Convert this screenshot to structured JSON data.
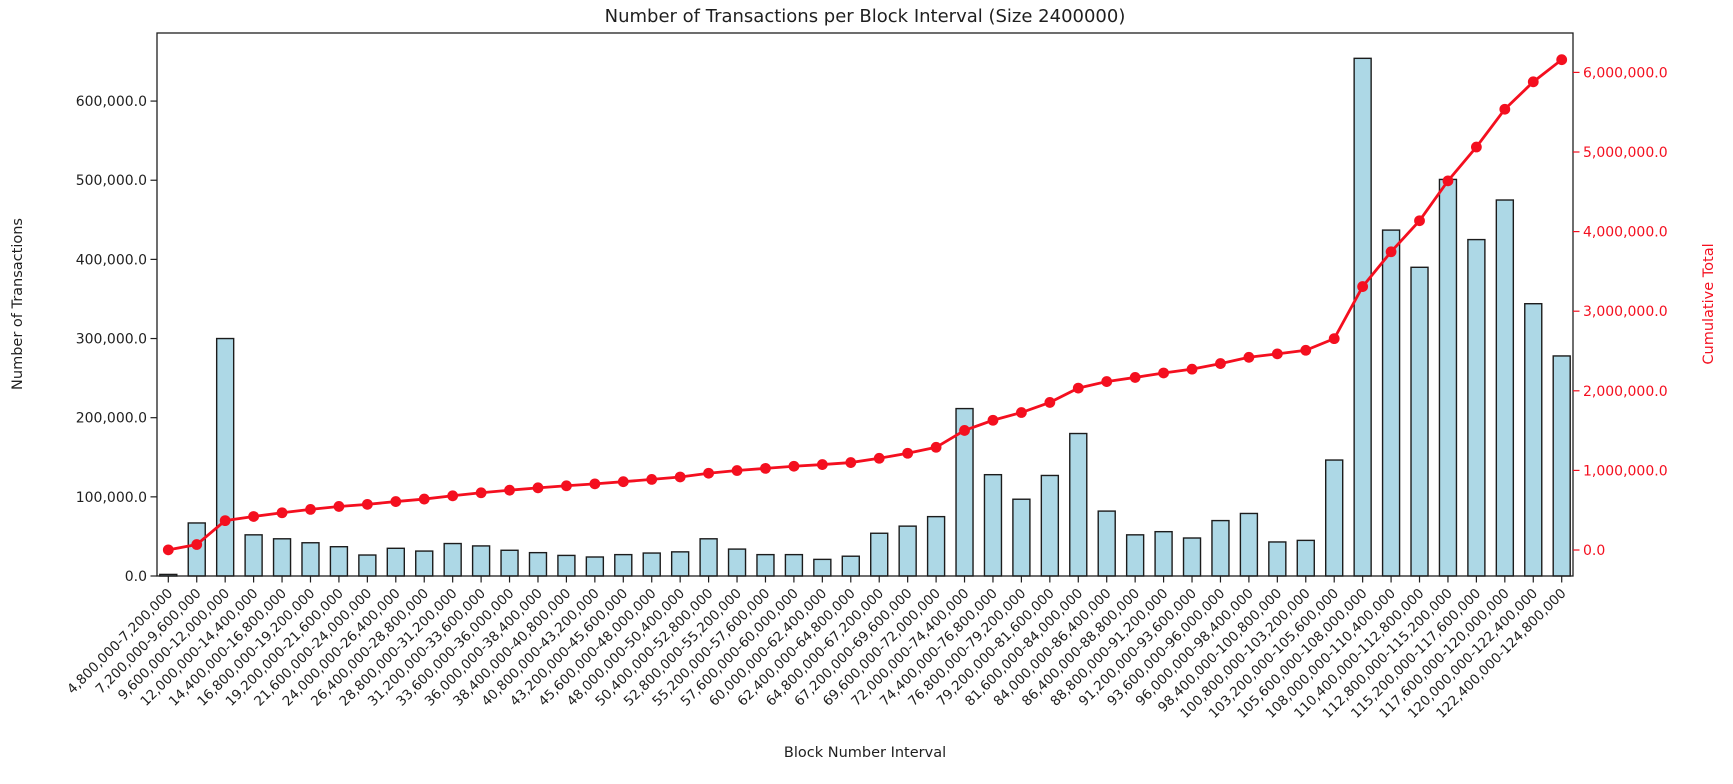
{
  "chart_data": {
    "type": "bar",
    "title": "Number of Transactions per Block Interval (Size 2400000)",
    "xlabel": "Block Number Interval",
    "grid": false,
    "legend": "none",
    "left_axis": {
      "label": "Number of Transactions",
      "color": "#1f1f1f",
      "range": [
        0,
        686000
      ],
      "ticks": [
        0,
        100000,
        200000,
        300000,
        400000,
        500000,
        600000
      ],
      "tick_labels": [
        "0.0",
        "100,000.0",
        "200,000.0",
        "300,000.0",
        "400,000.0",
        "500,000.0",
        "600,000.0"
      ]
    },
    "right_axis": {
      "label": "Cumulative Total",
      "color": "#f40f1f",
      "range": [
        -326600,
        6495000
      ],
      "ticks": [
        0,
        1000000,
        2000000,
        3000000,
        4000000,
        5000000,
        6000000
      ],
      "tick_labels": [
        "0.0",
        "1,000,000.0",
        "2,000,000.0",
        "3,000,000.0",
        "4,000,000.0",
        "5,000,000.0",
        "6,000,000.0"
      ]
    },
    "categories": [
      "4,800,000-7,200,000",
      "7,200,000-9,600,000",
      "9,600,000-12,000,000",
      "12,000,000-14,400,000",
      "14,400,000-16,800,000",
      "16,800,000-19,200,000",
      "19,200,000-21,600,000",
      "21,600,000-24,000,000",
      "24,000,000-26,400,000",
      "26,400,000-28,800,000",
      "28,800,000-31,200,000",
      "31,200,000-33,600,000",
      "33,600,000-36,000,000",
      "36,000,000-38,400,000",
      "38,400,000-40,800,000",
      "40,800,000-43,200,000",
      "43,200,000-45,600,000",
      "45,600,000-48,000,000",
      "48,000,000-50,400,000",
      "50,400,000-52,800,000",
      "52,800,000-55,200,000",
      "55,200,000-57,600,000",
      "57,600,000-60,000,000",
      "60,000,000-62,400,000",
      "62,400,000-64,800,000",
      "64,800,000-67,200,000",
      "67,200,000-69,600,000",
      "69,600,000-72,000,000",
      "72,000,000-74,400,000",
      "74,400,000-76,800,000",
      "76,800,000-79,200,000",
      "79,200,000-81,600,000",
      "81,600,000-84,000,000",
      "84,000,000-86,400,000",
      "86,400,000-88,800,000",
      "88,800,000-91,200,000",
      "91,200,000-93,600,000",
      "93,600,000-96,000,000",
      "96,000,000-98,400,000",
      "98,400,000-100,800,000",
      "100,800,000-103,200,000",
      "103,200,000-105,600,000",
      "105,600,000-108,000,000",
      "108,000,000-110,400,000",
      "110,400,000-112,800,000",
      "112,800,000-115,200,000",
      "115,200,000-117,600,000",
      "117,600,000-120,000,000",
      "120,000,000-122,400,000",
      "122,400,000-124,800,000"
    ],
    "series": [
      {
        "name": "Number of Transactions",
        "type": "bar",
        "axis": "left",
        "fill": "#add8e6",
        "edge": "#1c1c1c",
        "values": [
          2000,
          67000,
          300000,
          52000,
          47000,
          42000,
          37000,
          26500,
          35000,
          31500,
          41000,
          38000,
          32500,
          29500,
          26000,
          24000,
          27000,
          29000,
          30500,
          47000,
          34000,
          27000,
          27000,
          21000,
          25000,
          54000,
          63000,
          75000,
          211500,
          128000,
          97000,
          127000,
          180000,
          82000,
          52000,
          56000,
          48000,
          70000,
          79000,
          43000,
          45000,
          146500,
          654000,
          437000,
          390000,
          501000,
          425000,
          475000,
          344000,
          278000
        ]
      },
      {
        "name": "Cumulative Total",
        "type": "line",
        "axis": "right",
        "color": "#f40f1f",
        "marker": "circle",
        "values": [
          2000,
          69000,
          369000,
          421000,
          468000,
          510000,
          547000,
          573500,
          608500,
          640000,
          681000,
          719000,
          751500,
          781000,
          807000,
          831000,
          858000,
          887000,
          917500,
          964500,
          998500,
          1025500,
          1052500,
          1073500,
          1098500,
          1152500,
          1215500,
          1290500,
          1502000,
          1630000,
          1727000,
          1854000,
          2034000,
          2116000,
          2168000,
          2224000,
          2272000,
          2342000,
          2421000,
          2464000,
          2509000,
          2655500,
          3309500,
          3746500,
          4136500,
          4637500,
          5062500,
          5537500,
          5881500,
          6159500
        ]
      }
    ]
  }
}
